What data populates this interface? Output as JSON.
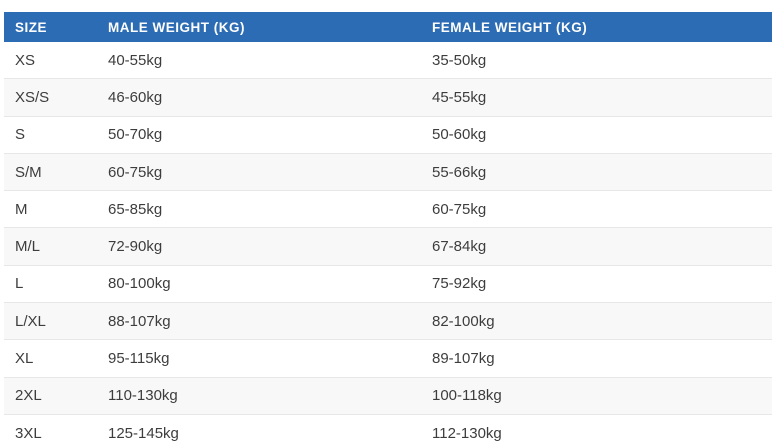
{
  "colors": {
    "header_bg": "#2b6cb4",
    "header_text": "#fdfdfd",
    "body_text": "#3d3d3d",
    "row_alt_bg": "#f8f8f8",
    "row_divider": "#e7e7e7",
    "page_bg": "#ffffff"
  },
  "chart_data": {
    "type": "table",
    "title": "",
    "columns": [
      "SIZE",
      "MALE WEIGHT (KG)",
      "FEMALE WEIGHT (KG)"
    ],
    "rows": [
      [
        "XS",
        "40-55kg",
        "35-50kg"
      ],
      [
        "XS/S",
        "46-60kg",
        "45-55kg"
      ],
      [
        "S",
        "50-70kg",
        "50-60kg"
      ],
      [
        "S/M",
        "60-75kg",
        "55-66kg"
      ],
      [
        "M",
        "65-85kg",
        "60-75kg"
      ],
      [
        "M/L",
        "72-90kg",
        "67-84kg"
      ],
      [
        "L",
        "80-100kg",
        "75-92kg"
      ],
      [
        "L/XL",
        "88-107kg",
        "82-100kg"
      ],
      [
        "XL",
        "95-115kg",
        "89-107kg"
      ],
      [
        "2XL",
        "110-130kg",
        "100-118kg"
      ],
      [
        "3XL",
        "125-145kg",
        "112-130kg"
      ]
    ],
    "layout": {
      "header_row": true,
      "zebra_striping": true,
      "grid": "horizontal-dividers-only"
    }
  }
}
